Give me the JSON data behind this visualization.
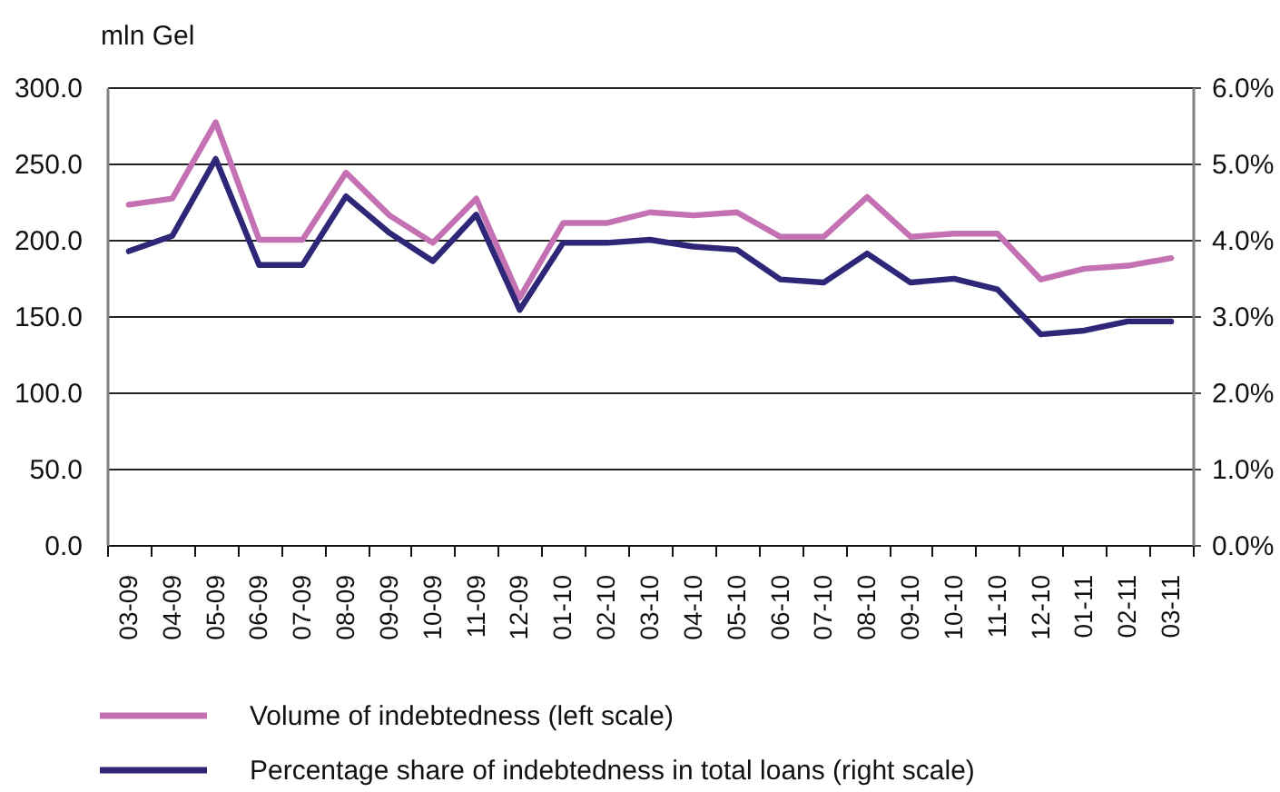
{
  "chart_data": {
    "type": "line",
    "ylabel": "mln Gel",
    "categories": [
      "03-09",
      "04-09",
      "05-09",
      "06-09",
      "07-09",
      "08-09",
      "09-09",
      "10-09",
      "11-09",
      "12-09",
      "01-10",
      "02-10",
      "03-10",
      "04-10",
      "05-10",
      "06-10",
      "07-10",
      "08-10",
      "09-10",
      "10-10",
      "11-10",
      "12-10",
      "01-11",
      "02-11",
      "03-11"
    ],
    "series": [
      {
        "name": "Volume of indebtedness (left scale)",
        "color": "#c471b3",
        "values": [
          223,
          227,
          277,
          200,
          200,
          244,
          216,
          198,
          227,
          162,
          211,
          211,
          218,
          216,
          218,
          202,
          202,
          228,
          202,
          204,
          204,
          174,
          181,
          183,
          188
        ]
      },
      {
        "name": "Percentage share of indebtedness in total loans (right scale)",
        "color": "#2e2777",
        "axis": "y2",
        "values": [
          3.85,
          4.05,
          5.06,
          3.67,
          3.67,
          4.57,
          4.09,
          3.72,
          4.33,
          3.08,
          3.96,
          3.96,
          4.0,
          3.91,
          3.87,
          3.48,
          3.44,
          3.82,
          3.44,
          3.49,
          3.35,
          2.76,
          2.81,
          2.93,
          2.93
        ]
      }
    ],
    "ylim": [
      0,
      300
    ],
    "yticks": [
      {
        "value": 0,
        "label": "0.0"
      },
      {
        "value": 50,
        "label": "50.0"
      },
      {
        "value": 100,
        "label": "100.0"
      },
      {
        "value": 150,
        "label": "150.0"
      },
      {
        "value": 200,
        "label": "200.0"
      },
      {
        "value": 250,
        "label": "250.0"
      },
      {
        "value": 300,
        "label": "300.0"
      }
    ],
    "y2lim": [
      0,
      6
    ],
    "y2ticks": [
      {
        "value": 0,
        "label": "0.0%"
      },
      {
        "value": 1,
        "label": "1.0%"
      },
      {
        "value": 2,
        "label": "2.0%"
      },
      {
        "value": 3,
        "label": "3.0%"
      },
      {
        "value": 4,
        "label": "4.0%"
      },
      {
        "value": 5,
        "label": "5.0%"
      },
      {
        "value": 6,
        "label": "6.0%"
      }
    ],
    "grid": "y",
    "legend": "bottom",
    "line_style": "solid"
  }
}
